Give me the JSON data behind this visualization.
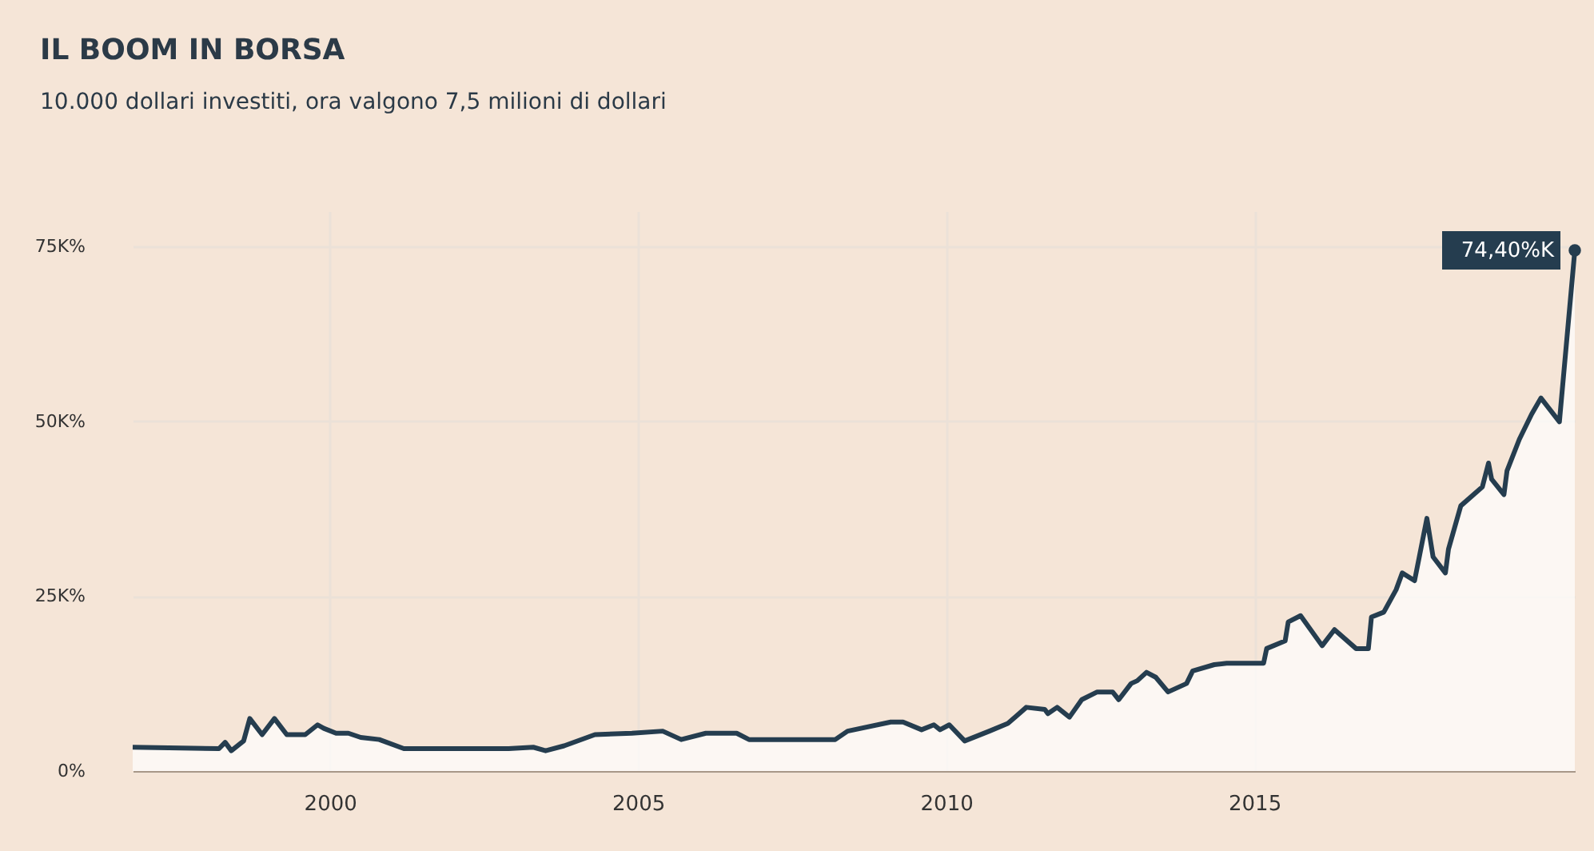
{
  "chart_data": {
    "type": "area",
    "title": "IL BOOM IN BORSA",
    "subtitle": "10.000 dollari investiti, ora valgono  7,5 milioni di dollari",
    "x": [
      1996.8,
      1998.2,
      1998.3,
      1998.4,
      1998.6,
      1998.7,
      1998.9,
      1999.1,
      1999.3,
      1999.6,
      1999.8,
      1999.9,
      2000.1,
      2000.3,
      2000.5,
      2000.8,
      2001.2,
      2002.9,
      2003.3,
      2003.5,
      2003.8,
      2004.3,
      2004.9,
      2005.4,
      2005.7,
      2006.1,
      2006.6,
      2006.8,
      2007.6,
      2008.2,
      2008.4,
      2009.1,
      2009.3,
      2009.6,
      2009.8,
      2009.9,
      2010.05,
      2010.3,
      2010.7,
      2011.0,
      2011.3,
      2011.6,
      2011.65,
      2011.8,
      2012.0,
      2012.2,
      2012.45,
      2012.7,
      2012.8,
      2013.0,
      2013.1,
      2013.25,
      2013.4,
      2013.6,
      2013.9,
      2014.0,
      2014.35,
      2014.55,
      2015.15,
      2015.2,
      2015.5,
      2015.55,
      2015.75,
      2016.1,
      2016.3,
      2016.65,
      2016.85,
      2016.9,
      2017.1,
      2017.3,
      2017.4,
      2017.6,
      2017.8,
      2017.9,
      2018.1,
      2018.15,
      2018.35,
      2018.7,
      2018.8,
      2018.85,
      2019.05,
      2019.1,
      2019.3,
      2019.5,
      2019.65,
      2019.95,
      2020.2
    ],
    "series": [
      {
        "color": "#253d4f",
        "values": [
          3.4,
          3.2,
          4.1,
          2.9,
          4.3,
          7.5,
          5.2,
          7.5,
          5.2,
          5.2,
          6.6,
          6.1,
          5.4,
          5.4,
          4.8,
          4.5,
          3.2,
          3.2,
          3.4,
          2.9,
          3.6,
          5.2,
          5.4,
          5.7,
          4.5,
          5.4,
          5.4,
          4.5,
          4.5,
          4.5,
          5.7,
          7.0,
          7.0,
          5.9,
          6.6,
          5.9,
          6.6,
          4.3,
          5.7,
          6.8,
          9.1,
          8.8,
          8.2,
          9.1,
          7.7,
          10.2,
          11.3,
          11.3,
          10.2,
          12.5,
          12.9,
          14.1,
          13.4,
          11.3,
          12.5,
          14.3,
          15.2,
          15.4,
          15.4,
          17.5,
          18.6,
          21.3,
          22.2,
          17.9,
          20.2,
          17.5,
          17.5,
          22.0,
          22.7,
          25.9,
          28.3,
          27.2,
          36.1,
          30.6,
          28.3,
          31.7,
          37.9,
          40.6,
          44.0,
          41.7,
          39.5,
          42.9,
          47.4,
          51.0,
          53.3,
          49.9,
          74.4
        ]
      }
    ],
    "xlim": [
      1996.8,
      2020.2
    ],
    "xticks": [
      2000,
      2005,
      2010,
      2015
    ],
    "ylim": [
      0,
      80
    ],
    "yticks": [
      {
        "value": 0,
        "label": "0%"
      },
      {
        "value": 25,
        "label": "25K%"
      },
      {
        "value": 50,
        "label": "50K%"
      },
      {
        "value": 75,
        "label": "75K%"
      }
    ],
    "grid": true,
    "annotations": [
      {
        "text": "74,40%K",
        "x": 2020.2,
        "y": 74.4
      }
    ]
  }
}
